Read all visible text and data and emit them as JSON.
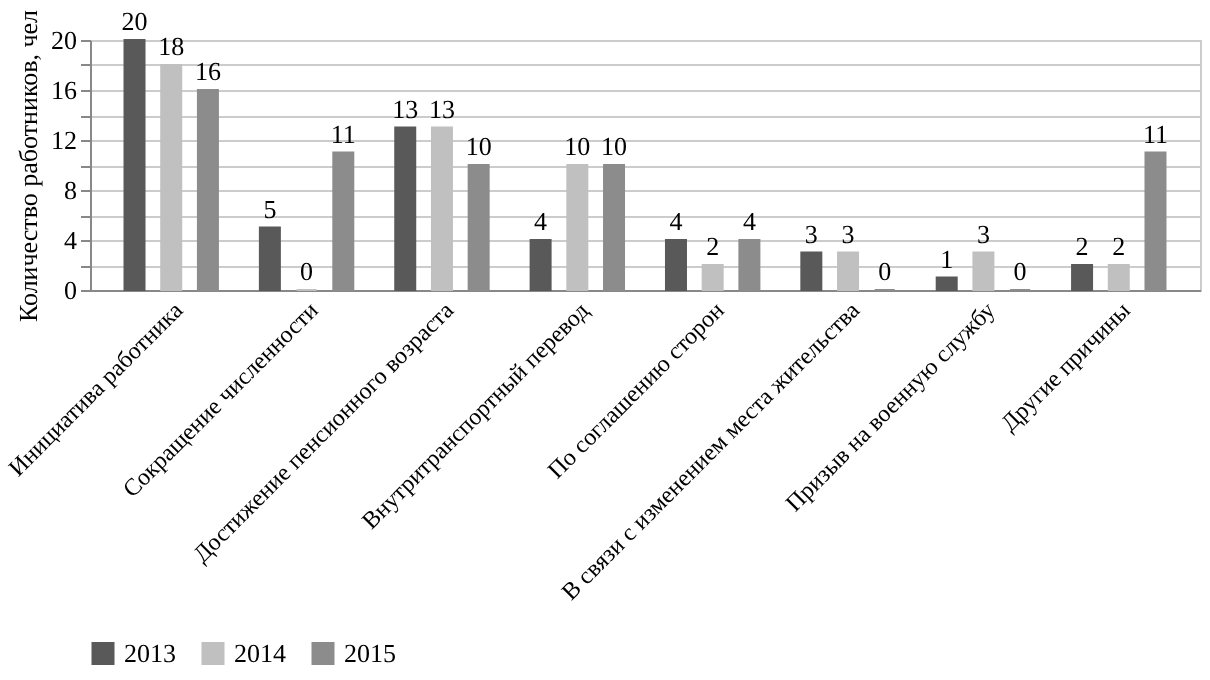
{
  "chart_data": {
    "type": "bar",
    "ylabel": "Количество работников, чел",
    "categories": [
      "Инициатива работника",
      "Сокращение численности",
      "Достижение пенсионного возраста",
      "Внутритранспортный перевод",
      "По соглашению сторон",
      "В связи с изменением места жительства",
      "Призыв на военную службу",
      "Другие причины"
    ],
    "series": [
      {
        "name": "2013",
        "color": "#595959",
        "values": [
          20,
          5,
          13,
          4,
          4,
          3,
          1,
          2
        ]
      },
      {
        "name": "2014",
        "color": "#c0c0c0",
        "values": [
          18,
          0,
          13,
          10,
          2,
          3,
          3,
          2
        ]
      },
      {
        "name": "2015",
        "color": "#8c8c8c",
        "values": [
          16,
          11,
          10,
          10,
          4,
          0,
          0,
          11
        ]
      }
    ],
    "ylim": [
      0,
      20
    ],
    "yticks": [
      0,
      {
        "value": 2,
        "label": null
      },
      4,
      {
        "value": 6,
        "label": null
      },
      8,
      {
        "value": 10,
        "label": null
      },
      12,
      {
        "value": 14,
        "label": null
      },
      16,
      {
        "value": 18,
        "label": null
      },
      20
    ],
    "grid": "y",
    "legend": "bottom",
    "data_labels": true
  }
}
